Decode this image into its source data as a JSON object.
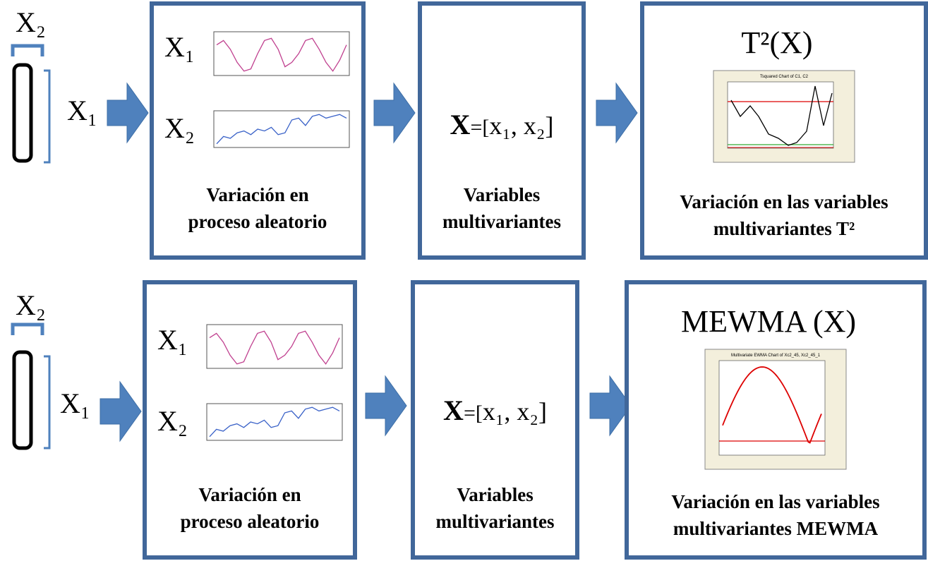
{
  "rows": [
    {
      "pipe": {
        "top_label": "X₂",
        "side_label": "X₁"
      },
      "random": {
        "series_labels": [
          "X₁",
          "X₂"
        ],
        "caption": [
          "Variación en",
          "proceso aleatorio"
        ]
      },
      "vector": {
        "formula": [
          "X",
          "=[",
          "x₁, x₂]"
        ],
        "caption": [
          "Variables",
          "multivariantes"
        ]
      },
      "chart": {
        "title": "T²(X)",
        "chart_title": "Tsquared Chart of C1, C2",
        "caption": [
          "Variación en las variables",
          "multivariantes T²"
        ]
      }
    },
    {
      "pipe": {
        "top_label": "X₂",
        "side_label": "X₁"
      },
      "random": {
        "series_labels": [
          "X₁",
          "X₂"
        ],
        "caption": [
          "Variación en",
          "proceso aleatorio"
        ]
      },
      "vector": {
        "formula": [
          "X",
          "=[",
          "x₁, x₂]"
        ],
        "caption": [
          "Variables",
          "multivariantes"
        ]
      },
      "chart": {
        "title": "MEWMA (X)",
        "chart_title": "Multivariate EWMA Chart of Xc2_45, Xc2_45_1",
        "caption": [
          "Variación en las variables",
          "multivariantes MEWMA"
        ]
      }
    }
  ]
}
